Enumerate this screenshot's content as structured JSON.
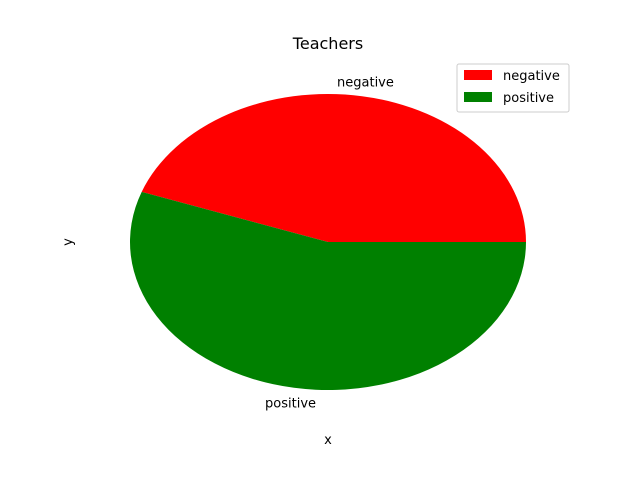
{
  "chart_data": {
    "type": "pie",
    "title": "Teachers",
    "xlabel": "x",
    "ylabel": "y",
    "slices": [
      {
        "label": "negative",
        "value": 44.5,
        "color": "#ff0000"
      },
      {
        "label": "positive",
        "value": 55.5,
        "color": "#008000"
      }
    ],
    "legend": {
      "position": "top-right",
      "entries": [
        "negative",
        "positive"
      ]
    },
    "start_angle_deg": 0,
    "direction": "counterclockwise"
  }
}
